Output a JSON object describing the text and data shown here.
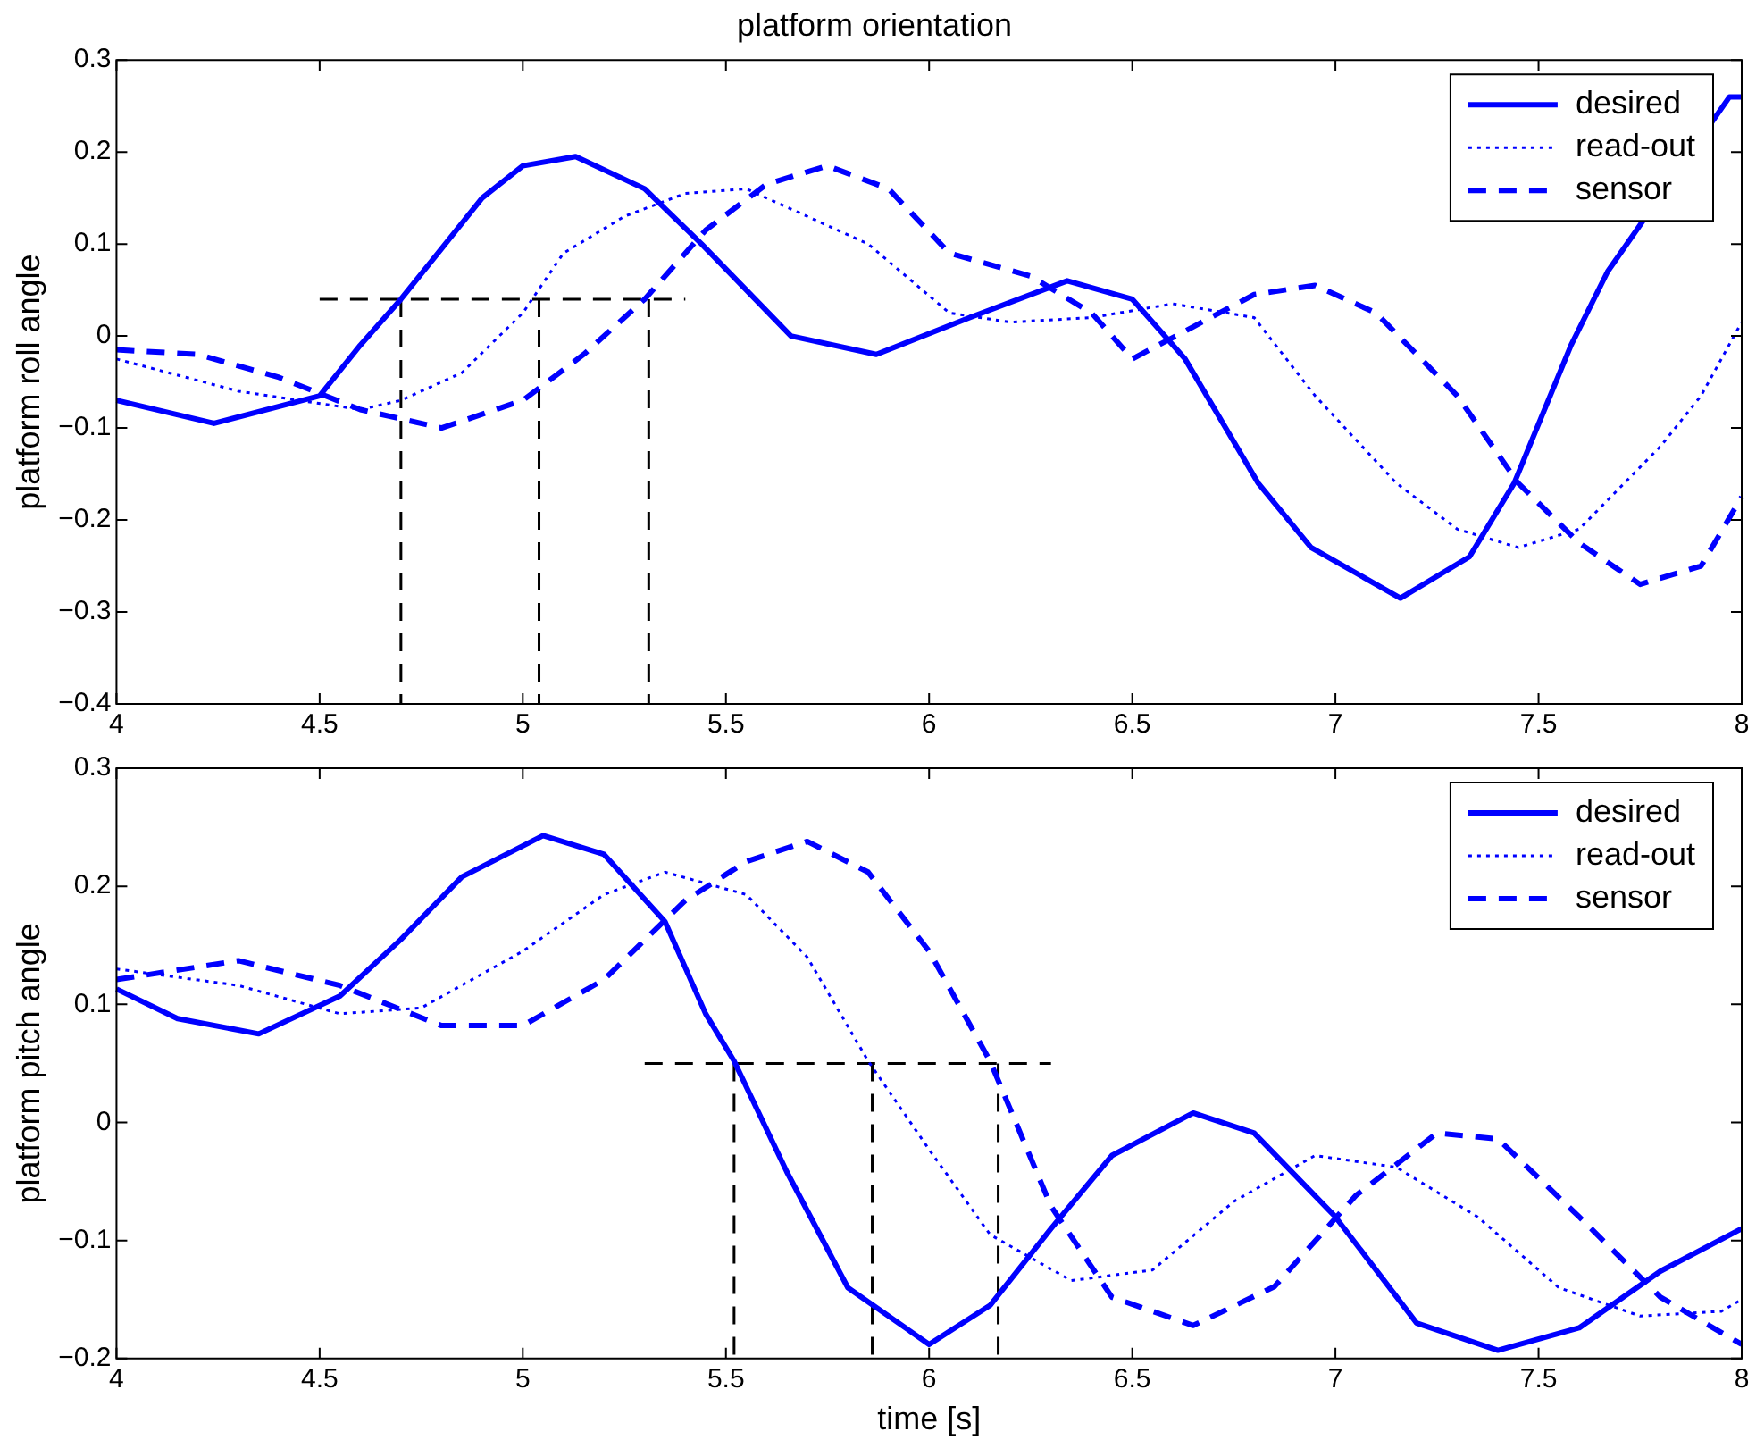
{
  "chart_data": [
    {
      "type": "line",
      "title": "platform orientation",
      "ylabel": "platform roll angle",
      "xlim": [
        4,
        8
      ],
      "xticks": [
        4,
        4.5,
        5,
        5.5,
        6,
        6.5,
        7,
        7.5,
        8
      ],
      "ylim": [
        -0.4,
        0.3
      ],
      "yticks": [
        -0.4,
        -0.3,
        -0.2,
        -0.1,
        0,
        0.1,
        0.2,
        0.3
      ],
      "grid": false,
      "legend": "top right",
      "series": [
        {
          "name": "desired",
          "color": "#0000ff",
          "line_style": "solid",
          "x": [
            4,
            4.24,
            4.5,
            4.6,
            4.7,
            4.8,
            4.9,
            5,
            5.13,
            5.3,
            5.44,
            5.66,
            5.87,
            6.1,
            6.34,
            6.5,
            6.63,
            6.81,
            6.94,
            7.16,
            7.33,
            7.44,
            7.58,
            7.67,
            7.97,
            8
          ],
          "values": [
            -0.07,
            -0.095,
            -0.065,
            -0.01,
            0.04,
            0.095,
            0.15,
            0.185,
            0.195,
            0.16,
            0.1,
            0,
            -0.02,
            0.02,
            0.06,
            0.04,
            -0.025,
            -0.16,
            -0.23,
            -0.285,
            -0.24,
            -0.16,
            -0.01,
            0.07,
            0.26,
            0.26
          ]
        },
        {
          "name": "read-out",
          "color": "#0000ff",
          "line_style": "dotted",
          "x": [
            4,
            4.3,
            4.6,
            4.7,
            4.85,
            5,
            5.1,
            5.25,
            5.4,
            5.55,
            5.7,
            5.85,
            6.05,
            6.2,
            6.4,
            6.6,
            6.8,
            6.95,
            7.15,
            7.3,
            7.45,
            7.6,
            7.8,
            7.9,
            8
          ],
          "values": [
            -0.025,
            -0.06,
            -0.08,
            -0.07,
            -0.04,
            0.025,
            0.09,
            0.13,
            0.155,
            0.16,
            0.13,
            0.1,
            0.025,
            0.015,
            0.02,
            0.035,
            0.02,
            -0.065,
            -0.16,
            -0.21,
            -0.23,
            -0.21,
            -0.12,
            -0.065,
            0.015
          ]
        },
        {
          "name": "sensor",
          "color": "#0000ff",
          "line_style": "dashed",
          "x": [
            4,
            4.2,
            4.4,
            4.6,
            4.8,
            5,
            5.15,
            5.3,
            5.45,
            5.6,
            5.75,
            5.9,
            6.05,
            6.25,
            6.4,
            6.5,
            6.65,
            6.8,
            6.95,
            7.1,
            7.3,
            7.45,
            7.6,
            7.75,
            7.9,
            8
          ],
          "values": [
            -0.015,
            -0.02,
            -0.045,
            -0.08,
            -0.1,
            -0.07,
            -0.02,
            0.04,
            0.115,
            0.165,
            0.185,
            0.16,
            0.09,
            0.065,
            0.025,
            -0.025,
            0.01,
            0.045,
            0.055,
            0.025,
            -0.065,
            -0.16,
            -0.225,
            -0.27,
            -0.25,
            -0.175
          ]
        },
        {
          "color": "#000000",
          "line_style": "dashed",
          "x": [
            4.5,
            5.4
          ],
          "values": [
            0.04,
            0.04
          ]
        },
        {
          "color": "#000000",
          "line_style": "dashed",
          "x": [
            4.7,
            4.7
          ],
          "values": [
            0.04,
            -0.4
          ]
        },
        {
          "color": "#000000",
          "line_style": "dashed",
          "x": [
            5.04,
            5.04
          ],
          "values": [
            0.04,
            -0.4
          ]
        },
        {
          "color": "#000000",
          "line_style": "dashed",
          "x": [
            5.31,
            5.31
          ],
          "values": [
            0.04,
            -0.4
          ]
        }
      ]
    },
    {
      "type": "line",
      "ylabel": "platform pitch angle",
      "xlabel": "time [s]",
      "xlim": [
        4,
        8
      ],
      "xticks": [
        4,
        4.5,
        5,
        5.5,
        6,
        6.5,
        7,
        7.5,
        8
      ],
      "ylim": [
        -0.2,
        0.3
      ],
      "yticks": [
        -0.2,
        -0.1,
        0,
        0.1,
        0.2,
        0.3
      ],
      "grid": false,
      "legend": "top right",
      "series": [
        {
          "name": "desired",
          "color": "#0000ff",
          "line_style": "solid",
          "x": [
            4,
            4.15,
            4.35,
            4.55,
            4.7,
            4.85,
            5.05,
            5.2,
            5.35,
            5.45,
            5.52,
            5.65,
            5.8,
            6,
            6.15,
            6.3,
            6.45,
            6.65,
            6.8,
            7,
            7.2,
            7.4,
            7.6,
            7.8,
            8
          ],
          "values": [
            0.113,
            0.088,
            0.075,
            0.107,
            0.155,
            0.208,
            0.243,
            0.227,
            0.17,
            0.092,
            0.052,
            -0.042,
            -0.14,
            -0.188,
            -0.155,
            -0.09,
            -0.028,
            0.008,
            -0.009,
            -0.08,
            -0.17,
            -0.193,
            -0.174,
            -0.126,
            -0.09
          ]
        },
        {
          "name": "read-out",
          "color": "#0000ff",
          "line_style": "dotted",
          "x": [
            4,
            4.3,
            4.55,
            4.75,
            5,
            5.2,
            5.35,
            5.55,
            5.7,
            5.85,
            6,
            6.15,
            6.35,
            6.55,
            6.75,
            6.95,
            7.15,
            7.35,
            7.55,
            7.75,
            7.95,
            8
          ],
          "values": [
            0.13,
            0.116,
            0.092,
            0.097,
            0.145,
            0.193,
            0.212,
            0.193,
            0.14,
            0.052,
            -0.023,
            -0.095,
            -0.134,
            -0.125,
            -0.067,
            -0.028,
            -0.038,
            -0.08,
            -0.14,
            -0.164,
            -0.16,
            -0.15
          ]
        },
        {
          "name": "sensor",
          "color": "#0000ff",
          "line_style": "dashed",
          "x": [
            4,
            4.3,
            4.55,
            4.8,
            5,
            5.2,
            5.4,
            5.55,
            5.7,
            5.85,
            6,
            6.15,
            6.3,
            6.45,
            6.65,
            6.85,
            7.05,
            7.25,
            7.4,
            7.6,
            7.8,
            8
          ],
          "values": [
            0.121,
            0.137,
            0.116,
            0.082,
            0.082,
            0.121,
            0.188,
            0.221,
            0.238,
            0.212,
            0.145,
            0.052,
            -0.071,
            -0.148,
            -0.172,
            -0.139,
            -0.062,
            -0.009,
            -0.014,
            -0.08,
            -0.148,
            -0.188
          ]
        },
        {
          "color": "#000000",
          "line_style": "dashed",
          "x": [
            5.3,
            6.3
          ],
          "values": [
            0.05,
            0.05
          ]
        },
        {
          "color": "#000000",
          "line_style": "dashed",
          "x": [
            5.52,
            5.52
          ],
          "values": [
            0.05,
            -0.2
          ]
        },
        {
          "color": "#000000",
          "line_style": "dashed",
          "x": [
            5.86,
            5.86
          ],
          "values": [
            0.05,
            -0.2
          ]
        },
        {
          "color": "#000000",
          "line_style": "dashed",
          "x": [
            6.17,
            6.17
          ],
          "values": [
            0.05,
            -0.2
          ]
        }
      ]
    }
  ]
}
